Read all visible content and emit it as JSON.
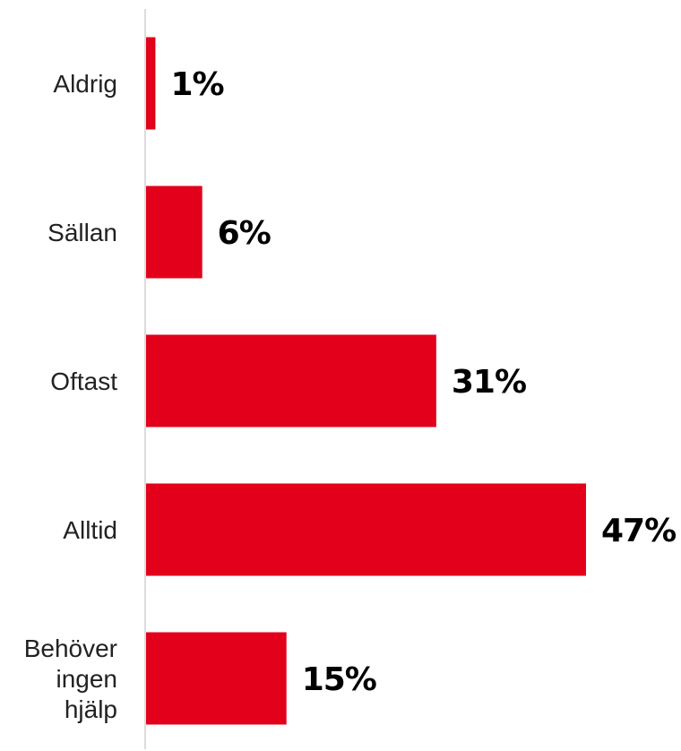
{
  "chart_data": {
    "type": "bar",
    "orientation": "horizontal",
    "categories": [
      [
        "Aldrig"
      ],
      [
        "Sällan"
      ],
      [
        "Oftast"
      ],
      [
        "Alltid"
      ],
      [
        "Behöver",
        "ingen",
        "hjälp"
      ]
    ],
    "values": [
      1,
      6,
      31,
      47,
      15
    ],
    "value_labels": [
      "1%",
      "6%",
      "31%",
      "47%",
      "15%"
    ],
    "unit": "%",
    "xlim": [
      0,
      47
    ],
    "grid": false,
    "legend": "none",
    "bar_color": "#e2001a",
    "axis_color": "#d0d0d0"
  }
}
